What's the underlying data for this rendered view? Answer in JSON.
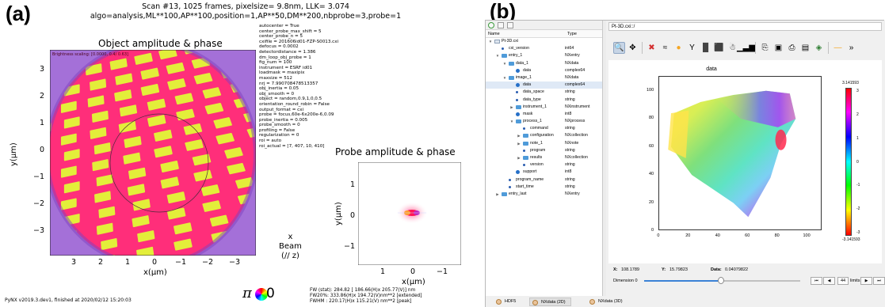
{
  "panel_a": {
    "letter": "(a)",
    "header": {
      "line1": "Scan #13, 1025 frames, pixelsize=  9.8nm, LLK=  3.074",
      "line2": "algo=analysis,ML**100,AP**100,position=1,AP**50,DM**200,nbprobe=3,probe=1"
    },
    "object_plot": {
      "title": "Object amplitude & phase",
      "overlay_text": "Brightness scaling: [0.0000, 0.4/ 0.63]",
      "xlabel": "x(μm)",
      "ylabel": "y(μm)",
      "xticks": [
        "3",
        "2",
        "1",
        "0",
        "−1",
        "−2",
        "−3"
      ],
      "yticks": [
        "3",
        "2",
        "1",
        "0",
        "−1",
        "−2",
        "−3"
      ],
      "colors": {
        "background": "#ff2e7a",
        "stripes": "#e3ee3a",
        "outer_ring": "#a470d8"
      }
    },
    "params": [
      "autocenter = True",
      "center_probe_max_shift = 5",
      "center_probe_n = 5",
      "cxifile = 201606id01-FZP-S0013.cxi",
      "defocus = 0.0002",
      "detectordistance = 1.386",
      "dm_loop_obj_probe = 1",
      "fig_num = 100",
      "instrument = ESRF id01",
      "loadmask = maxipix",
      "maxsize = 512",
      "nrj = 7.990708478513357",
      "obj_inertia = 0.05",
      "obj_smooth = 0",
      "object = random,0.9,1,0,0.5",
      "orientation_round_robin = False",
      "output_format = cxi",
      "probe = focus,60e-6x200e-6,0.09",
      "probe_inertia = 0.005",
      "probe_smooth = 0",
      "profiling = False",
      "regularization = 0",
      "roi = auto",
      "roi_actual = [7, 407, 10, 410]"
    ],
    "probe_plot": {
      "title": "Probe amplitude & phase",
      "xlabel": "x(μm)",
      "ylabel": "y(μm)",
      "xticks": [
        "1",
        "0",
        "−1"
      ],
      "yticks": [
        "1",
        "0",
        "−1"
      ]
    },
    "beam_label": {
      "line1": "x",
      "line2": "Beam",
      "line3": "(// z)"
    },
    "footer": "PyNX v2019.3.dev1, finished at 2020/02/12 15:20:03",
    "fw_lines": [
      "FW (stat):    284.82 [ 186.66(H)x 205.77(V)] nm",
      "FW20%:   333.86(H)x 194.72(V)nm**2 [extended]",
      "FWHM :   220.17(H)x 115.21(V) nm**2 [peak]"
    ],
    "legend": {
      "pi": "π",
      "zero": "0"
    }
  },
  "panel_b": {
    "letter": "(b)",
    "tree": {
      "col_name": "Name",
      "col_type": "Type",
      "rows": [
        {
          "indent": 0,
          "arrow": "▼",
          "icon": "file",
          "name": "Pt-3D.cxi",
          "type": ""
        },
        {
          "indent": 1,
          "arrow": "",
          "icon": "scalar",
          "name": "cxi_version",
          "type": "int64"
        },
        {
          "indent": 1,
          "arrow": "▼",
          "icon": "folder",
          "name": "entry_1",
          "type": "NXentry"
        },
        {
          "indent": 2,
          "arrow": "▼",
          "icon": "folder",
          "name": "data_1",
          "type": "NXdata"
        },
        {
          "indent": 3,
          "arrow": "",
          "icon": "dataset",
          "name": "data",
          "type": "complex64"
        },
        {
          "indent": 2,
          "arrow": "▼",
          "icon": "folder",
          "name": "image_1",
          "type": "NXdata"
        },
        {
          "indent": 3,
          "arrow": "",
          "icon": "dataset",
          "name": "data",
          "type": "complex64",
          "selected": true
        },
        {
          "indent": 3,
          "arrow": "",
          "icon": "scalar",
          "name": "data_space",
          "type": "string"
        },
        {
          "indent": 3,
          "arrow": "",
          "icon": "scalar",
          "name": "data_type",
          "type": "string"
        },
        {
          "indent": 3,
          "arrow": "▶",
          "icon": "folder",
          "name": "instrument_1",
          "type": "NXinstrument"
        },
        {
          "indent": 3,
          "arrow": "",
          "icon": "dataset",
          "name": "mask",
          "type": "int8"
        },
        {
          "indent": 3,
          "arrow": "▼",
          "icon": "folder",
          "name": "process_1",
          "type": "NXprocess"
        },
        {
          "indent": 4,
          "arrow": "",
          "icon": "scalar",
          "name": "command",
          "type": "string"
        },
        {
          "indent": 4,
          "arrow": "▶",
          "icon": "folder",
          "name": "configuration",
          "type": "NXcollection"
        },
        {
          "indent": 4,
          "arrow": "▶",
          "icon": "folder",
          "name": "note_1",
          "type": "NXnote"
        },
        {
          "indent": 4,
          "arrow": "",
          "icon": "scalar",
          "name": "program",
          "type": "string"
        },
        {
          "indent": 4,
          "arrow": "▶",
          "icon": "folder",
          "name": "results",
          "type": "NXcollection"
        },
        {
          "indent": 4,
          "arrow": "",
          "icon": "scalar",
          "name": "version",
          "type": "string"
        },
        {
          "indent": 3,
          "arrow": "",
          "icon": "dataset",
          "name": "support",
          "type": "int8"
        },
        {
          "indent": 2,
          "arrow": "",
          "icon": "scalar",
          "name": "program_name",
          "type": "string"
        },
        {
          "indent": 2,
          "arrow": "",
          "icon": "scalar",
          "name": "start_time",
          "type": "string"
        },
        {
          "indent": 1,
          "arrow": "▶",
          "icon": "folder",
          "name": "entry_last",
          "type": "NXentry"
        }
      ]
    },
    "path_bar": "Pt-3D.cxi::/",
    "toolbar": [
      {
        "name": "zoom-icon",
        "glyph": "🔍",
        "active": true
      },
      {
        "name": "pan-icon",
        "glyph": "✥"
      },
      {
        "sep": true
      },
      {
        "name": "reset-zoom-icon",
        "glyph": "✖",
        "color": "#d32f2f"
      },
      {
        "name": "mask-icon",
        "glyph": "≈"
      },
      {
        "name": "colormap-icon",
        "glyph": "●",
        "color": "#f5a623"
      },
      {
        "name": "y-axis-icon",
        "glyph": "Y"
      },
      {
        "name": "colorbar-icon",
        "glyph": "█",
        "color": "#444"
      },
      {
        "name": "keep-aspect-icon",
        "glyph": "⬛"
      },
      {
        "name": "face-icon",
        "glyph": "☃"
      },
      {
        "name": "histogram-icon",
        "glyph": "▁▃▆"
      },
      {
        "sep": true
      },
      {
        "name": "copy-icon",
        "glyph": "⎘"
      },
      {
        "name": "save-icon",
        "glyph": "▣"
      },
      {
        "name": "print-icon",
        "glyph": "⎙"
      },
      {
        "name": "profile-icon",
        "glyph": "▤"
      },
      {
        "name": "color-picker-icon",
        "glyph": "◈",
        "color": "#2e7d32"
      },
      {
        "sep": true
      },
      {
        "name": "line-profile-icon",
        "glyph": "—",
        "color": "#f5a623"
      },
      {
        "name": "more-icon",
        "glyph": "»"
      }
    ],
    "plot": {
      "title": "data",
      "xticks": [
        "0",
        "20",
        "40",
        "60",
        "80",
        "100"
      ],
      "yticks": [
        "100",
        "80",
        "60",
        "40",
        "20",
        "0"
      ],
      "colorbar_ticks": [
        "3.141593",
        "3",
        "2",
        "1",
        "0",
        "-1",
        "-2",
        "-3",
        "-3.141593"
      ]
    },
    "status": {
      "x_label": "X:",
      "x_value": "108.1789",
      "y_label": "Y:",
      "y_value": "15.79823",
      "data_label": "Data:",
      "data_value": "0.04079822"
    },
    "dimension": {
      "label": "Dimension 0",
      "value": "44",
      "limits": "limits: 0, 89",
      "first": "⏮",
      "prev": "◀",
      "next": "▶",
      "last": "⏭",
      "fraction": 0.494
    },
    "bottom_tabs": [
      {
        "label": "HDF5",
        "active": false
      },
      {
        "label": "NXdata (2D)",
        "active": true
      },
      {
        "label": "NXdata (3D)",
        "active": false
      }
    ]
  }
}
